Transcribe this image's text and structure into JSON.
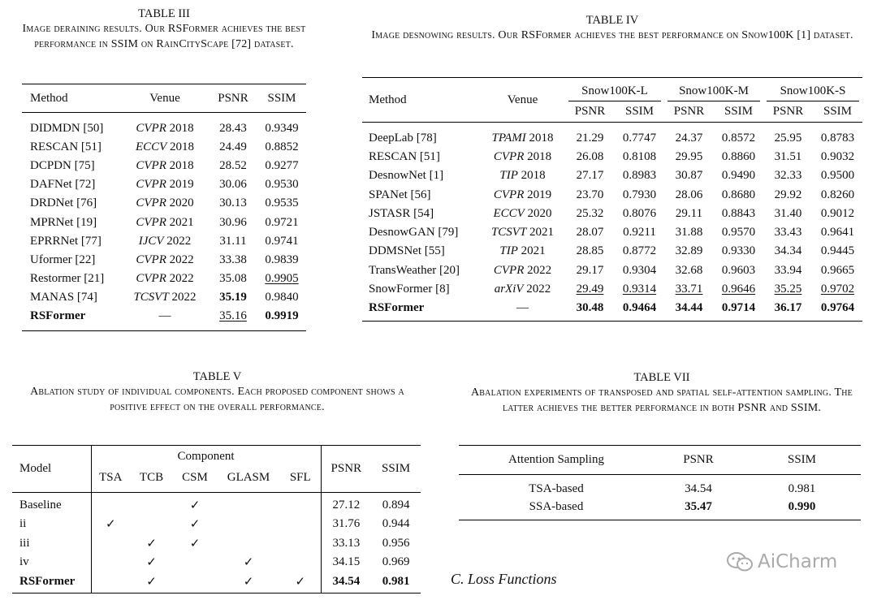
{
  "table_iii": {
    "caption": "TABLE III",
    "description": "Image deraining results. Our RSFormer achieves the best performance in SSIM on RainCityScape [72] dataset.",
    "header": [
      "Method",
      "Venue",
      "PSNR",
      "SSIM"
    ],
    "rows": [
      [
        "DIDMDN [50]",
        {
          "venue": "CVPR",
          "year": "2018"
        },
        "28.43",
        "0.9349"
      ],
      [
        "RESCAN [51]",
        {
          "venue": "ECCV",
          "year": "2018"
        },
        "24.49",
        "0.8852"
      ],
      [
        "DCPDN [75]",
        {
          "venue": "CVPR",
          "year": "2018"
        },
        "28.52",
        "0.9277"
      ],
      [
        "DAFNet [72]",
        {
          "venue": "CVPR",
          "year": "2019"
        },
        "30.06",
        "0.9530"
      ],
      [
        "DRDNet [76]",
        {
          "venue": "CVPR",
          "year": "2020"
        },
        "30.13",
        "0.9535"
      ],
      [
        "MPRNet [19]",
        {
          "venue": "CVPR",
          "year": "2021"
        },
        "30.96",
        "0.9721"
      ],
      [
        "EPRRNet [77]",
        {
          "venue": "IJCV",
          "year": "2022"
        },
        "31.11",
        "0.9741"
      ],
      [
        "Uformer [22]",
        {
          "venue": "CVPR",
          "year": "2022"
        },
        "33.38",
        "0.9839"
      ],
      [
        "Restormer [21]",
        {
          "venue": "CVPR",
          "year": "2022"
        },
        "35.08",
        "0.9905"
      ],
      [
        "MANAS [74]",
        {
          "venue": "TCSVT",
          "year": "2022"
        },
        "35.19",
        "0.9840"
      ],
      [
        "RSFormer",
        "—",
        "35.16",
        "0.9919"
      ]
    ]
  },
  "table_iv": {
    "caption": "TABLE IV",
    "description": "Image desnowing results. Our RSFormer achieves the best performance on Snow100K [1] dataset.",
    "header": {
      "method": "Method",
      "venue": "Venue",
      "groups": [
        "Snow100K-L",
        "Snow100K-M",
        "Snow100K-S"
      ],
      "metrics": [
        "PSNR",
        "SSIM",
        "PSNR",
        "SSIM",
        "PSNR",
        "SSIM"
      ]
    },
    "rows": [
      [
        "DeepLab [78]",
        {
          "venue": "TPAMI",
          "year": "2018"
        },
        "21.29",
        "0.7747",
        "24.37",
        "0.8572",
        "25.95",
        "0.8783"
      ],
      [
        "RESCAN [51]",
        {
          "venue": "CVPR",
          "year": "2018"
        },
        "26.08",
        "0.8108",
        "29.95",
        "0.8860",
        "31.51",
        "0.9032"
      ],
      [
        "DesnowNet [1]",
        {
          "venue": "TIP",
          "year": "2018"
        },
        "27.17",
        "0.8983",
        "30.87",
        "0.9490",
        "32.33",
        "0.9500"
      ],
      [
        "SPANet [56]",
        {
          "venue": "CVPR",
          "year": "2019"
        },
        "23.70",
        "0.7930",
        "28.06",
        "0.8680",
        "29.92",
        "0.8260"
      ],
      [
        "JSTASR [54]",
        {
          "venue": "ECCV",
          "year": "2020"
        },
        "25.32",
        "0.8076",
        "29.11",
        "0.8843",
        "31.40",
        "0.9012"
      ],
      [
        "DesnowGAN [79]",
        {
          "venue": "TCSVT",
          "year": "2021"
        },
        "28.07",
        "0.9211",
        "31.88",
        "0.9570",
        "33.43",
        "0.9641"
      ],
      [
        "DDMSNet [55]",
        {
          "venue": "TIP",
          "year": "2021"
        },
        "28.85",
        "0.8772",
        "32.89",
        "0.9330",
        "34.34",
        "0.9445"
      ],
      [
        "TransWeather [20]",
        {
          "venue": "CVPR",
          "year": "2022"
        },
        "29.17",
        "0.9304",
        "32.68",
        "0.9603",
        "33.94",
        "0.9665"
      ],
      [
        "SnowFormer [8]",
        {
          "venue": "arXiV",
          "year": "2022"
        },
        "29.49",
        "0.9314",
        "33.71",
        "0.9646",
        "35.25",
        "0.9702"
      ],
      [
        "RSFormer",
        "—",
        "30.48",
        "0.9464",
        "34.44",
        "0.9714",
        "36.17",
        "0.9764"
      ]
    ]
  },
  "table_v": {
    "caption": "TABLE V",
    "description": "Ablation study of individual components. Each proposed component shows a positive effect on the overall performance.",
    "header": {
      "model": "Model",
      "component": "Component",
      "components": [
        "TSA",
        "TCB",
        "CSM",
        "GLASM",
        "SFL"
      ],
      "metrics": [
        "PSNR",
        "SSIM"
      ]
    },
    "rows": [
      [
        "Baseline",
        null,
        null,
        "✓",
        null,
        null,
        "27.12",
        "0.894"
      ],
      [
        "ii",
        "✓",
        null,
        "✓",
        null,
        null,
        "31.76",
        "0.944"
      ],
      [
        "iii",
        null,
        "✓",
        "✓",
        null,
        null,
        "33.13",
        "0.956"
      ],
      [
        "iv",
        null,
        "✓",
        null,
        "✓",
        null,
        "34.15",
        "0.969"
      ],
      [
        "RSFormer",
        null,
        "✓",
        null,
        "✓",
        "✓",
        "34.54",
        "0.981"
      ]
    ]
  },
  "table_vii": {
    "caption": "TABLE VII",
    "description": "Abalation experiments of transposed and spatial self-attention sampling. The latter achieves the better performance in both PSNR and SSIM.",
    "header": [
      "Attention Sampling",
      "PSNR",
      "SSIM"
    ],
    "rows": [
      [
        "TSA-based",
        "34.54",
        "0.981"
      ],
      [
        "SSA-based",
        "35.47",
        "0.990"
      ]
    ]
  },
  "section_heading": "C. Loss Functions",
  "watermark": "AiCharm"
}
